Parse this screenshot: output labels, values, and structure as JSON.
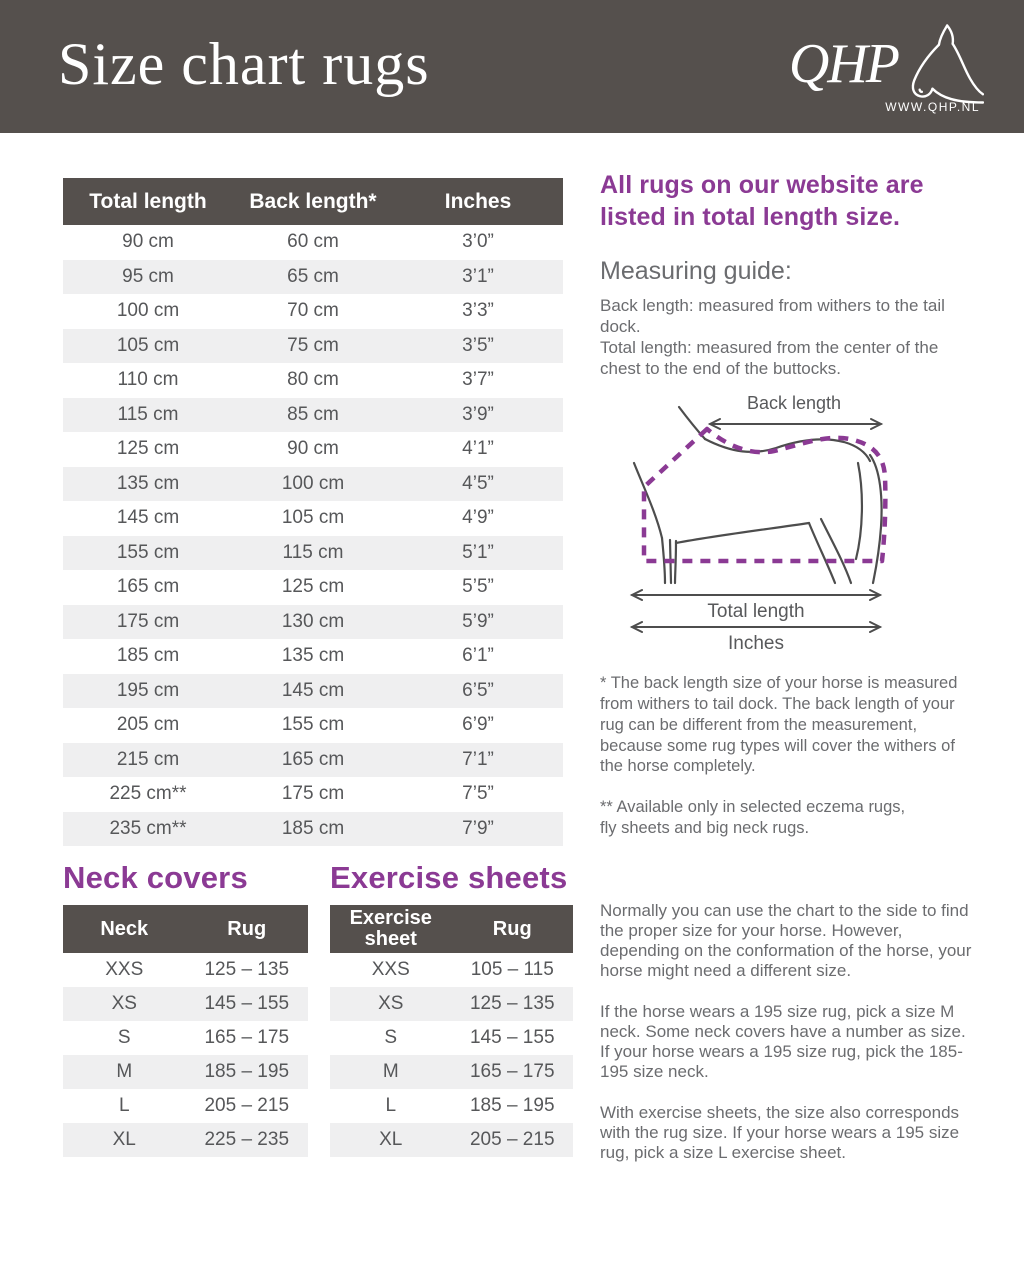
{
  "header": {
    "title": "Size chart rugs",
    "logo_text": "QHP",
    "logo_url": "WWW.QHP.NL"
  },
  "main_table": {
    "columns": [
      "Total length",
      "Back length*",
      "Inches"
    ],
    "rows": [
      [
        "90 cm",
        "60 cm",
        "3’0”"
      ],
      [
        "95 cm",
        "65 cm",
        "3’1”"
      ],
      [
        "100 cm",
        "70 cm",
        "3’3”"
      ],
      [
        "105 cm",
        "75 cm",
        "3’5”"
      ],
      [
        "110 cm",
        "80 cm",
        "3’7”"
      ],
      [
        "115 cm",
        "85 cm",
        "3’9”"
      ],
      [
        "125 cm",
        "90 cm",
        "4’1”"
      ],
      [
        "135 cm",
        "100 cm",
        "4’5”"
      ],
      [
        "145 cm",
        "105 cm",
        "4’9”"
      ],
      [
        "155 cm",
        "115 cm",
        "5’1”"
      ],
      [
        "165 cm",
        "125 cm",
        "5’5”"
      ],
      [
        "175 cm",
        "130 cm",
        "5’9”"
      ],
      [
        "185 cm",
        "135 cm",
        "6’1”"
      ],
      [
        "195 cm",
        "145 cm",
        "6’5”"
      ],
      [
        "205 cm",
        "155 cm",
        "6’9”"
      ],
      [
        "215 cm",
        "165 cm",
        "7’1”"
      ],
      [
        "225 cm**",
        "175 cm",
        "7’5”"
      ],
      [
        "235 cm**",
        "185 cm",
        "7’9”"
      ]
    ]
  },
  "intro": {
    "headline": "All rugs on our website are listed in total length size.",
    "measuring_title": "Measuring guide:",
    "measuring_body": "Back length: measured from withers to the tail dock.\nTotal length: measured from the center of the chest to the end of the buttocks."
  },
  "diagram": {
    "back_label": "Back length",
    "total_label": "Total length",
    "inches_label": "Inches"
  },
  "footnotes": {
    "one": "* The back length size of your horse is measured from withers to tail dock. The back length of your rug can be different from the measurement, because some rug types will cover the withers of the horse completely.",
    "two": "** Available only in selected eczema rugs,\nfly sheets and big neck rugs."
  },
  "neck_covers": {
    "title": "Neck covers",
    "columns": [
      "Neck",
      "Rug"
    ],
    "rows": [
      [
        "XXS",
        "125 – 135"
      ],
      [
        "XS",
        "145 – 155"
      ],
      [
        "S",
        "165 – 175"
      ],
      [
        "M",
        "185 – 195"
      ],
      [
        "L",
        "205 – 215"
      ],
      [
        "XL",
        "225 – 235"
      ]
    ]
  },
  "exercise_sheets": {
    "title": "Exercise sheets",
    "columns": [
      "Exercise sheet",
      "Rug"
    ],
    "rows": [
      [
        "XXS",
        "105 – 115"
      ],
      [
        "XS",
        "125 – 135"
      ],
      [
        "S",
        "145 – 155"
      ],
      [
        "M",
        "165 – 175"
      ],
      [
        "L",
        "185 – 195"
      ],
      [
        "XL",
        "205 – 215"
      ]
    ]
  },
  "notes": {
    "p1": "Normally you can use the chart to the side to find the proper size for your horse.  However, depending on the conformation of the horse, your horse might need a different size.",
    "p2": "If the horse wears a 195 size rug, pick a size M neck. Some neck covers have a number as size. If your horse wears a 195 size rug, pick the 185-195 size neck.",
    "p3": "With exercise sheets, the size also corresponds with the rug size. If your horse wears a 195 size rug, pick a size L exercise sheet."
  },
  "colors": {
    "banner": "#55504d",
    "purple": "#8b3a94",
    "rowalt": "#efeff0",
    "body_text": "#6b6c6f",
    "table_text": "#565759"
  }
}
